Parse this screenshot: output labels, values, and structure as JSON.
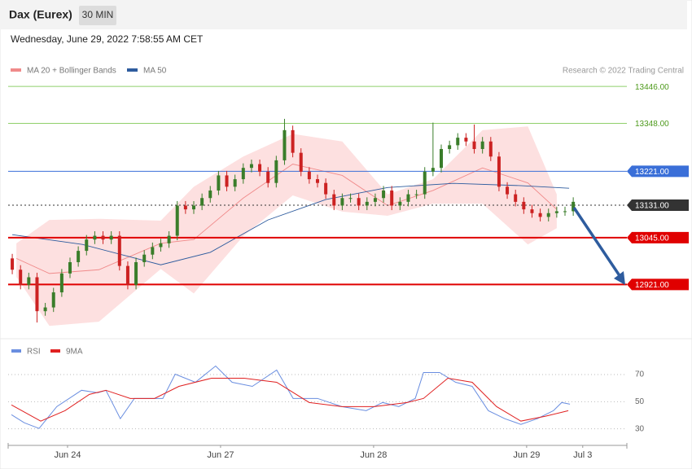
{
  "header": {
    "title": "Dax (Eurex)",
    "interval": "30 MIN",
    "timestamp": "Wednesday, June 29, 2022 7:58:55 AM CET"
  },
  "chart_data": [
    {
      "type": "candlestick",
      "credit": "Research © 2022 Trading Central",
      "xlim": [
        0,
        150
      ],
      "ylim": [
        12790,
        13470
      ],
      "up_color": "#3a7d2a",
      "down_color": "#cc2222",
      "x": [
        1,
        3,
        5,
        7,
        9,
        11,
        13,
        15,
        17,
        19,
        21,
        23,
        25,
        27,
        29,
        31,
        33,
        35,
        37,
        39,
        41,
        43,
        45,
        47,
        49,
        51,
        53,
        55,
        57,
        59,
        61,
        63,
        65,
        67,
        69,
        71,
        73,
        75,
        77,
        79,
        81,
        83,
        85,
        87,
        89,
        91,
        93,
        95,
        97,
        99,
        101,
        103,
        105,
        107,
        109,
        111,
        113,
        115,
        117,
        119,
        121,
        123,
        125,
        127,
        129,
        131,
        133,
        135,
        137
      ],
      "open": [
        12990,
        12960,
        12920,
        12940,
        12850,
        12860,
        12900,
        12950,
        12980,
        13010,
        13040,
        13050,
        13040,
        13050,
        12970,
        12920,
        12980,
        13000,
        13020,
        13030,
        13050,
        13130,
        13120,
        13130,
        13150,
        13170,
        13210,
        13180,
        13200,
        13230,
        13240,
        13220,
        13190,
        13250,
        13330,
        13270,
        13220,
        13200,
        13190,
        13160,
        13130,
        13150,
        13150,
        13130,
        13140,
        13150,
        13170,
        13130,
        13140,
        13160,
        13160,
        13220,
        13230,
        13280,
        13290,
        13310,
        13300,
        13280,
        13300,
        13260,
        13180,
        13160,
        13140,
        13120,
        13110,
        13100,
        13110,
        13115,
        13115
      ],
      "high": [
        13002,
        12972,
        12952,
        12952,
        12872,
        12912,
        12962,
        12992,
        13022,
        13052,
        13062,
        13062,
        13062,
        13062,
        12982,
        12992,
        13012,
        13032,
        13042,
        13062,
        13142,
        13142,
        13142,
        13162,
        13182,
        13222,
        13222,
        13212,
        13242,
        13252,
        13252,
        13232,
        13262,
        13360,
        13342,
        13282,
        13232,
        13212,
        13202,
        13172,
        13162,
        13162,
        13162,
        13152,
        13162,
        13182,
        13182,
        13152,
        13172,
        13172,
        13232,
        13350,
        13292,
        13302,
        13322,
        13322,
        13345,
        13312,
        13312,
        13272,
        13192,
        13172,
        13152,
        13132,
        13122,
        13122,
        13127,
        13127,
        13152
      ],
      "low": [
        12948,
        12908,
        12908,
        12820,
        12838,
        12848,
        12888,
        12938,
        12968,
        12998,
        13028,
        13028,
        13028,
        12958,
        12908,
        12908,
        12968,
        12988,
        13008,
        13018,
        13038,
        13108,
        13108,
        13118,
        13138,
        13158,
        13168,
        13168,
        13188,
        13218,
        13208,
        13178,
        13178,
        13238,
        13258,
        13208,
        13188,
        13178,
        13148,
        13118,
        13118,
        13138,
        13118,
        13118,
        13128,
        13138,
        13118,
        13118,
        13128,
        13148,
        13148,
        13208,
        13218,
        13268,
        13278,
        13288,
        13268,
        13268,
        13248,
        13168,
        13148,
        13128,
        13108,
        13098,
        13088,
        13088,
        13098,
        13103,
        13103
      ],
      "close": [
        12960,
        12920,
        12940,
        12850,
        12860,
        12900,
        12950,
        12980,
        13010,
        13040,
        13050,
        13040,
        13050,
        12970,
        12920,
        12980,
        13000,
        13020,
        13030,
        13050,
        13130,
        13120,
        13130,
        13150,
        13170,
        13210,
        13180,
        13200,
        13230,
        13240,
        13220,
        13190,
        13250,
        13330,
        13270,
        13220,
        13200,
        13190,
        13160,
        13130,
        13150,
        13150,
        13130,
        13140,
        13150,
        13170,
        13130,
        13140,
        13160,
        13160,
        13220,
        13230,
        13280,
        13290,
        13310,
        13300,
        13280,
        13300,
        13260,
        13180,
        13160,
        13140,
        13120,
        13110,
        13100,
        13110,
        13115,
        13115,
        13140
      ],
      "series": [
        {
          "name": "MA 20 + Bollinger Bands",
          "color": "#f08a8a",
          "band_color": "#fde0e0",
          "x": [
            2,
            10,
            22,
            37,
            45,
            57,
            69,
            81,
            92,
            103,
            115,
            126,
            133
          ],
          "values": [
            12990,
            12950,
            12960,
            13030,
            13040,
            13150,
            13240,
            13210,
            13130,
            13170,
            13230,
            13190,
            13120
          ],
          "upper": [
            13030,
            13092,
            13095,
            13090,
            13180,
            13260,
            13320,
            13300,
            13160,
            13200,
            13330,
            13340,
            13160
          ],
          "lower": [
            12941,
            12811,
            12822,
            12962,
            12897,
            13049,
            13157,
            13114,
            13103,
            13135,
            13135,
            13027,
            13070
          ]
        },
        {
          "name": "MA 50",
          "color": "#2e5c9e",
          "x": [
            1,
            18,
            37,
            49,
            63,
            77,
            92,
            108,
            124,
            136
          ],
          "values": [
            13053,
            13027,
            12973,
            13006,
            13092,
            13146,
            13178,
            13189,
            13183,
            13176
          ]
        }
      ],
      "levels": [
        {
          "value": 13446,
          "label": "13446.00",
          "color": "#8fcf6a",
          "text_color": "#4e9a1c",
          "style": "text"
        },
        {
          "value": 13348,
          "label": "13348.00",
          "color": "#8fcf6a",
          "text_color": "#4e9a1c",
          "style": "text"
        },
        {
          "value": 13221,
          "label": "13221.00",
          "color": "#3a6fd8",
          "text_color": "#ffffff",
          "style": "tag"
        },
        {
          "value": 13131,
          "label": "13131.00",
          "color": "#333333",
          "text_color": "#ffffff",
          "style": "tag",
          "dashed": true
        },
        {
          "value": 13045,
          "label": "13045.00",
          "color": "#e00000",
          "text_color": "#ffffff",
          "style": "tag"
        },
        {
          "value": 12921,
          "label": "12921.00",
          "color": "#e00000",
          "text_color": "#ffffff",
          "style": "tag"
        }
      ]
    },
    {
      "type": "line",
      "xlim": [
        0,
        150
      ],
      "ylim": [
        22,
        88
      ],
      "yticks": [
        30,
        50,
        70
      ],
      "grid": true,
      "xticks": [
        {
          "value": 14.4,
          "label": "Jun 24"
        },
        {
          "value": 51.5,
          "label": "Jun 27"
        },
        {
          "value": 88.6,
          "label": "Jun 28"
        },
        {
          "value": 125.7,
          "label": "Jun 29"
        },
        {
          "value": 139.3,
          "label": "Jul 3"
        }
      ],
      "series": [
        {
          "name": "RSI",
          "color": "#6a8ee0",
          "x": [
            0.8,
            3.9,
            7.5,
            11.8,
            17.8,
            21.7,
            23.7,
            27.2,
            30.6,
            37.5,
            40.5,
            45.4,
            50.3,
            54.3,
            59.2,
            65.1,
            69.1,
            75,
            80.9,
            86.8,
            90.8,
            94.7,
            98.7,
            100.7,
            104.6,
            108.5,
            112.5,
            116.4,
            120.4,
            124.3,
            128.3,
            132.2,
            134.2,
            136.2
          ],
          "values": [
            40.4,
            34.5,
            30.3,
            46.4,
            58.4,
            56.6,
            58.4,
            37.5,
            52.4,
            52.4,
            70.3,
            64.3,
            76.3,
            64.3,
            61.3,
            73.3,
            52.4,
            52.4,
            46.4,
            43.4,
            49.4,
            46.4,
            52.4,
            71.5,
            71.5,
            64.3,
            61.3,
            43.4,
            37.5,
            33.3,
            37.5,
            43.4,
            49.4,
            48.2
          ]
        },
        {
          "name": "9MA",
          "color": "#e02020",
          "x": [
            0.8,
            7.9,
            13.8,
            19.7,
            23.7,
            29.6,
            35.5,
            41.4,
            49.3,
            57.2,
            65.1,
            73,
            80.9,
            88.8,
            96.7,
            100.7,
            106.6,
            112.5,
            118.4,
            124.3,
            130.3,
            135.8
          ],
          "values": [
            47.6,
            35.7,
            43.4,
            55.4,
            58.4,
            52.4,
            52.4,
            61.3,
            67.3,
            67.3,
            64.3,
            49.4,
            46.4,
            46.4,
            49.4,
            52.4,
            67.3,
            64.3,
            46.4,
            35.7,
            39.3,
            43.4
          ]
        }
      ]
    }
  ]
}
